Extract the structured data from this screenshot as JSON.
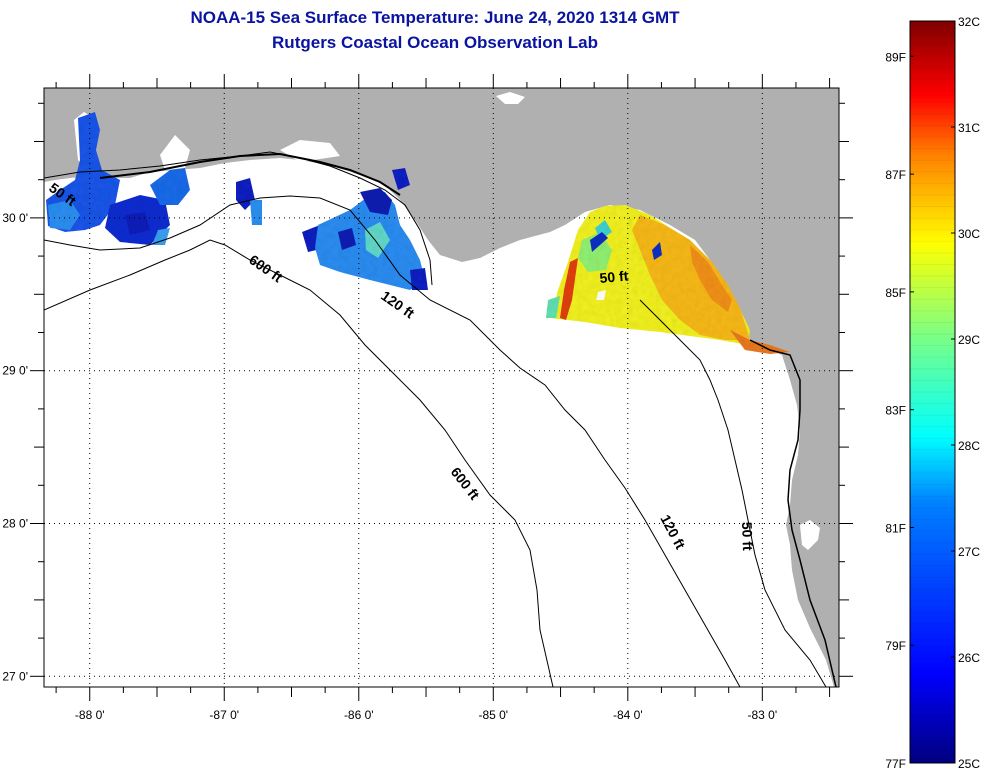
{
  "header": {
    "title": "NOAA-15 Sea Surface Temperature:  June 24, 2020 1314 GMT",
    "subtitle": "Rutgers Coastal Ocean Observation Lab"
  },
  "map": {
    "lat_range": [
      26.93,
      30.85
    ],
    "lon_range": [
      -88.34,
      -82.43
    ],
    "lat_ticks": [
      {
        "value": 30,
        "label": "30 0'"
      },
      {
        "value": 29,
        "label": "29 0'"
      },
      {
        "value": 28,
        "label": "28 0'"
      },
      {
        "value": 27,
        "label": "27 0'"
      }
    ],
    "lon_ticks": [
      {
        "value": -88,
        "label": "-88 0'"
      },
      {
        "value": -87,
        "label": "-87 0'"
      },
      {
        "value": -86,
        "label": "-86 0'"
      },
      {
        "value": -85,
        "label": "-85 0'"
      },
      {
        "value": -84,
        "label": "-84 0'"
      },
      {
        "value": -83,
        "label": "-83 0'"
      }
    ],
    "contour_labels": [
      {
        "id": "50ft-west",
        "text": "50 ft"
      },
      {
        "id": "600ft-north",
        "text": "600 ft"
      },
      {
        "id": "120ft-north",
        "text": "120 ft"
      },
      {
        "id": "50ft-bigbend",
        "text": "50 ft"
      },
      {
        "id": "600ft-south",
        "text": "600 ft"
      },
      {
        "id": "120ft-south",
        "text": "120 ft"
      },
      {
        "id": "50ft-south",
        "text": "50 ft"
      }
    ],
    "colors": {
      "land": "#b0b0b0",
      "ocean": "#ffffff",
      "title": "#0a14a0"
    }
  },
  "colorbar": {
    "celsius_range": [
      25,
      32
    ],
    "celsius_labels": [
      "32C",
      "31C",
      "30C",
      "29C",
      "28C",
      "27C",
      "26C",
      "25C"
    ],
    "fahrenheit_labels": [
      "89F",
      "87F",
      "85F",
      "83F",
      "81F",
      "79F",
      "77F"
    ],
    "fahrenheit_values": [
      89,
      87,
      85,
      83,
      81,
      79,
      77
    ]
  }
}
